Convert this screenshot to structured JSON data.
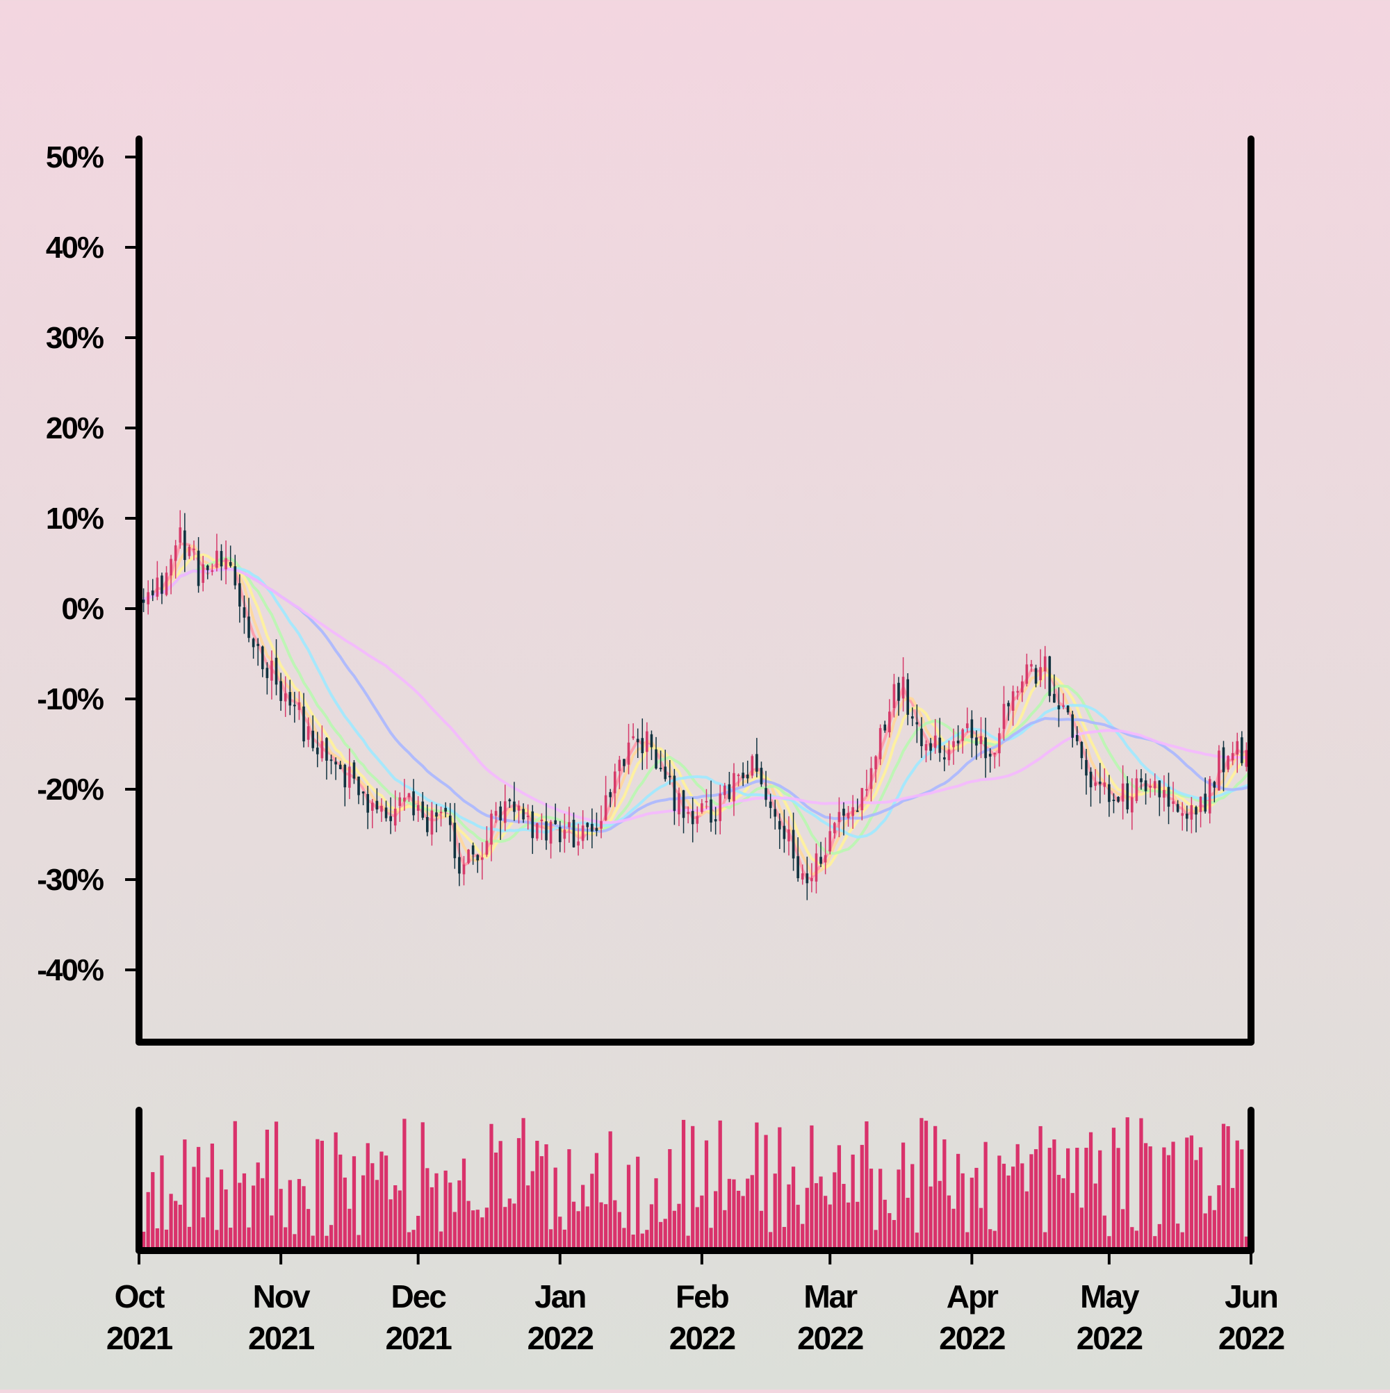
{
  "chart_data": {
    "type": "ohlc-candlestick-with-moving-averages-and-volume",
    "title": "",
    "xlabel": "",
    "ylabel": "",
    "ylim": [
      -0.48,
      0.52
    ],
    "y_ticks": [
      {
        "value": 0.5,
        "label": "50%"
      },
      {
        "value": 0.4,
        "label": "40%"
      },
      {
        "value": 0.3,
        "label": "30%"
      },
      {
        "value": 0.2,
        "label": "20%"
      },
      {
        "value": 0.1,
        "label": "10%"
      },
      {
        "value": 0.0,
        "label": "0%"
      },
      {
        "value": -0.1,
        "label": "-10%"
      },
      {
        "value": -0.2,
        "label": "-20%"
      },
      {
        "value": -0.3,
        "label": "-30%"
      },
      {
        "value": -0.4,
        "label": "-40%"
      }
    ],
    "x_range": [
      "2021-10-01",
      "2022-06-01"
    ],
    "x_ticks": [
      {
        "date": "2021-10-01",
        "label_month": "Oct",
        "label_year": "2021"
      },
      {
        "date": "2021-11-01",
        "label_month": "Nov",
        "label_year": "2021"
      },
      {
        "date": "2021-12-01",
        "label_month": "Dec",
        "label_year": "2021"
      },
      {
        "date": "2022-01-01",
        "label_month": "Jan",
        "label_year": "2022"
      },
      {
        "date": "2022-02-01",
        "label_month": "Feb",
        "label_year": "2022"
      },
      {
        "date": "2022-03-01",
        "label_month": "Mar",
        "label_year": "2022"
      },
      {
        "date": "2022-04-01",
        "label_month": "Apr",
        "label_year": "2022"
      },
      {
        "date": "2022-05-01",
        "label_month": "May",
        "label_year": "2022"
      },
      {
        "date": "2022-06-01",
        "label_month": "Jun",
        "label_year": "2022"
      }
    ],
    "price_anchors": [
      [
        "2021-10-01",
        0.03
      ],
      [
        "2021-10-04",
        0.01
      ],
      [
        "2021-10-07",
        0.04
      ],
      [
        "2021-10-10",
        0.08
      ],
      [
        "2021-10-14",
        0.04
      ],
      [
        "2021-10-19",
        0.05
      ],
      [
        "2021-10-22",
        0.02
      ],
      [
        "2021-10-26",
        -0.04
      ],
      [
        "2021-10-30",
        -0.07
      ],
      [
        "2021-11-03",
        -0.1
      ],
      [
        "2021-11-07",
        -0.14
      ],
      [
        "2021-11-11",
        -0.17
      ],
      [
        "2021-11-16",
        -0.19
      ],
      [
        "2021-11-20",
        -0.22
      ],
      [
        "2021-11-24",
        -0.23
      ],
      [
        "2021-11-28",
        -0.21
      ],
      [
        "2021-12-02",
        -0.24
      ],
      [
        "2021-12-06",
        -0.22
      ],
      [
        "2021-12-10",
        -0.28
      ],
      [
        "2021-12-14",
        -0.28
      ],
      [
        "2021-12-17",
        -0.24
      ],
      [
        "2021-12-21",
        -0.22
      ],
      [
        "2021-12-26",
        -0.25
      ],
      [
        "2021-12-30",
        -0.24
      ],
      [
        "2022-01-03",
        -0.25
      ],
      [
        "2022-01-07",
        -0.25
      ],
      [
        "2022-01-11",
        -0.22
      ],
      [
        "2022-01-15",
        -0.16
      ],
      [
        "2022-01-18",
        -0.15
      ],
      [
        "2022-01-21",
        -0.15
      ],
      [
        "2022-01-24",
        -0.2
      ],
      [
        "2022-01-27",
        -0.21
      ],
      [
        "2022-01-31",
        -0.23
      ],
      [
        "2022-02-04",
        -0.23
      ],
      [
        "2022-02-08",
        -0.19
      ],
      [
        "2022-02-12",
        -0.18
      ],
      [
        "2022-02-16",
        -0.22
      ],
      [
        "2022-02-20",
        -0.26
      ],
      [
        "2022-02-24",
        -0.31
      ],
      [
        "2022-02-27",
        -0.27
      ],
      [
        "2022-03-03",
        -0.23
      ],
      [
        "2022-03-07",
        -0.22
      ],
      [
        "2022-03-10",
        -0.17
      ],
      [
        "2022-03-14",
        -0.1
      ],
      [
        "2022-03-17",
        -0.09
      ],
      [
        "2022-03-20",
        -0.13
      ],
      [
        "2022-03-24",
        -0.15
      ],
      [
        "2022-03-28",
        -0.15
      ],
      [
        "2022-04-01",
        -0.13
      ],
      [
        "2022-04-05",
        -0.16
      ],
      [
        "2022-04-09",
        -0.1
      ],
      [
        "2022-04-13",
        -0.07
      ],
      [
        "2022-04-17",
        -0.07
      ],
      [
        "2022-04-21",
        -0.12
      ],
      [
        "2022-04-24",
        -0.15
      ],
      [
        "2022-04-28",
        -0.2
      ],
      [
        "2022-05-02",
        -0.21
      ],
      [
        "2022-05-06",
        -0.21
      ],
      [
        "2022-05-10",
        -0.19
      ],
      [
        "2022-05-14",
        -0.22
      ],
      [
        "2022-05-18",
        -0.24
      ],
      [
        "2022-05-21",
        -0.22
      ],
      [
        "2022-05-25",
        -0.17
      ],
      [
        "2022-05-29",
        -0.16
      ],
      [
        "2022-06-01",
        -0.16
      ]
    ],
    "moving_average_windows": [
      3,
      5,
      8,
      13,
      21,
      34,
      55
    ],
    "colors": {
      "up_candle": "#d63a6a",
      "down_candle": "#10323f",
      "volume_bar": "#d9326b",
      "axis": "#000000",
      "ma_lines": [
        "#ff9aa8",
        "#ffd79a",
        "#fff29a",
        "#b9f7b0",
        "#9ee9ff",
        "#aab7ff",
        "#f5b8ff"
      ]
    }
  }
}
